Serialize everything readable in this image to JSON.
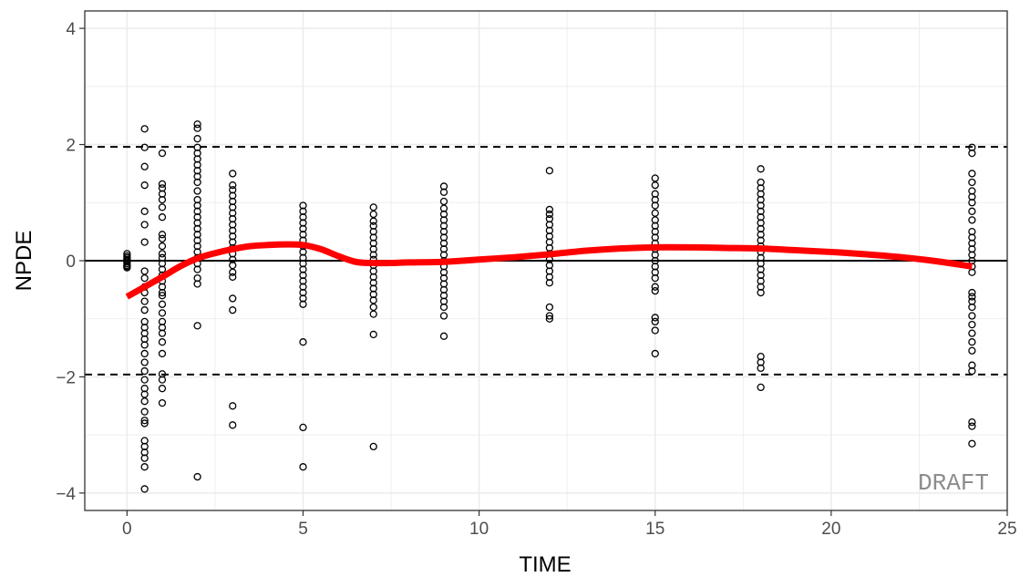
{
  "chart_data": {
    "type": "scatter",
    "xlabel": "TIME",
    "ylabel": "NPDE",
    "xlim": [
      -1.2,
      25
    ],
    "ylim": [
      -4.3,
      4.3
    ],
    "x_ticks": [
      0,
      5,
      10,
      15,
      20,
      25
    ],
    "y_ticks": [
      -4,
      -2,
      0,
      2,
      4
    ],
    "x_tick_labels": [
      "0",
      "5",
      "10",
      "15",
      "20",
      "25"
    ],
    "y_tick_labels": [
      "−4",
      "−2",
      "0",
      "2",
      "4"
    ],
    "grid": true,
    "reference_lines": {
      "solid": [
        0
      ],
      "dashed": [
        -1.96,
        1.96
      ]
    },
    "watermark": "DRAFT",
    "colors": {
      "points": "#000000",
      "smooth": "#ff0000",
      "grid": "#ebebeb",
      "panel_border": "#333333",
      "watermark": "#8c8c8c"
    },
    "series": [
      {
        "type": "scatter",
        "groups": [
          {
            "x": 0,
            "y": [
              0.12,
              0.08,
              0.05,
              0.02,
              0.0,
              -0.02,
              -0.05,
              -0.08,
              -0.1,
              -0.12
            ]
          },
          {
            "x": 0.5,
            "y": [
              2.27,
              1.95,
              1.62,
              1.3,
              0.85,
              0.62,
              0.32,
              -0.18,
              -0.3,
              -0.45,
              -0.55,
              -0.7,
              -0.85,
              -1.05,
              -1.15,
              -1.25,
              -1.35,
              -1.45,
              -1.6,
              -1.75,
              -1.9,
              -2.05,
              -2.2,
              -2.3,
              -2.42,
              -2.6,
              -2.75,
              -2.8,
              -3.1,
              -3.2,
              -3.3,
              -3.4,
              -3.55,
              -3.93
            ]
          },
          {
            "x": 1,
            "y": [
              1.85,
              1.32,
              1.25,
              1.15,
              1.05,
              0.92,
              0.75,
              0.45,
              0.38,
              0.25,
              0.12,
              0.05,
              -0.05,
              -0.15,
              -0.25,
              -0.35,
              -0.45,
              -0.55,
              -0.6,
              -0.75,
              -0.9,
              -1.05,
              -1.15,
              -1.25,
              -1.4,
              -1.6,
              -1.95,
              -2.05,
              -2.2,
              -2.45
            ]
          },
          {
            "x": 2,
            "y": [
              2.35,
              2.28,
              2.1,
              1.95,
              1.85,
              1.75,
              1.65,
              1.55,
              1.45,
              1.35,
              1.2,
              1.05,
              0.95,
              0.85,
              0.75,
              0.65,
              0.55,
              0.45,
              0.35,
              0.25,
              0.15,
              0.05,
              -0.05,
              -0.15,
              -0.3,
              -0.4,
              -1.12,
              -3.72
            ]
          },
          {
            "x": 3,
            "y": [
              1.5,
              1.3,
              1.22,
              1.12,
              1.02,
              0.92,
              0.82,
              0.72,
              0.62,
              0.52,
              0.42,
              0.32,
              0.22,
              0.12,
              0.02,
              -0.08,
              -0.2,
              -0.28,
              -0.65,
              -0.85,
              -2.5,
              -2.83
            ]
          },
          {
            "x": 5,
            "y": [
              0.95,
              0.85,
              0.75,
              0.65,
              0.55,
              0.45,
              0.35,
              0.25,
              0.15,
              0.05,
              -0.05,
              -0.15,
              -0.25,
              -0.35,
              -0.45,
              -0.55,
              -0.65,
              -0.75,
              -1.4,
              -2.87,
              -3.55
            ]
          },
          {
            "x": 7,
            "y": [
              0.92,
              0.8,
              0.68,
              0.6,
              0.5,
              0.4,
              0.3,
              0.2,
              0.1,
              0.02,
              -0.08,
              -0.18,
              -0.28,
              -0.38,
              -0.48,
              -0.58,
              -0.68,
              -0.8,
              -0.92,
              -1.27,
              -3.2
            ]
          },
          {
            "x": 9,
            "y": [
              1.28,
              1.18,
              1.02,
              0.9,
              0.8,
              0.7,
              0.6,
              0.5,
              0.4,
              0.3,
              0.2,
              0.1,
              0.0,
              -0.1,
              -0.2,
              -0.3,
              -0.4,
              -0.5,
              -0.6,
              -0.7,
              -0.8,
              -0.95,
              -1.3
            ]
          },
          {
            "x": 12,
            "y": [
              1.55,
              0.88,
              0.8,
              0.72,
              0.62,
              0.52,
              0.42,
              0.32,
              0.22,
              0.12,
              0.02,
              -0.08,
              -0.18,
              -0.28,
              -0.38,
              -0.8,
              -0.95,
              -1.0
            ]
          },
          {
            "x": 15,
            "y": [
              1.42,
              1.3,
              1.15,
              1.05,
              0.95,
              0.82,
              0.7,
              0.6,
              0.5,
              0.4,
              0.3,
              0.2,
              0.1,
              0.0,
              -0.1,
              -0.2,
              -0.3,
              -0.45,
              -0.52,
              -0.98,
              -1.05,
              -1.2,
              -1.6
            ]
          },
          {
            "x": 18,
            "y": [
              1.58,
              1.35,
              1.25,
              1.15,
              1.05,
              0.95,
              0.85,
              0.75,
              0.65,
              0.55,
              0.45,
              0.35,
              0.25,
              0.15,
              0.05,
              -0.05,
              -0.15,
              -0.25,
              -0.35,
              -0.45,
              -0.55,
              -1.65,
              -1.75,
              -1.85,
              -2.18
            ]
          },
          {
            "x": 24,
            "y": [
              1.95,
              1.85,
              1.5,
              1.35,
              1.2,
              1.1,
              1.0,
              0.85,
              0.7,
              0.5,
              0.4,
              0.3,
              0.2,
              0.1,
              0.0,
              -0.1,
              -0.2,
              -0.55,
              -0.62,
              -0.7,
              -0.8,
              -0.95,
              -1.1,
              -1.25,
              -1.4,
              -1.55,
              -1.8,
              -1.9,
              -2.78,
              -2.85,
              -3.15
            ]
          }
        ]
      },
      {
        "type": "line",
        "x": [
          0,
          0.5,
          1,
          1.5,
          2,
          2.5,
          3,
          3.5,
          4,
          4.5,
          5,
          5.5,
          6,
          6.5,
          7,
          7.5,
          8,
          9,
          10,
          11,
          12,
          13,
          14,
          15,
          16,
          17,
          18,
          19,
          20,
          21,
          22,
          23,
          24
        ],
        "y": [
          -0.62,
          -0.45,
          -0.28,
          -0.1,
          0.04,
          0.13,
          0.2,
          0.25,
          0.27,
          0.28,
          0.27,
          0.2,
          0.08,
          -0.02,
          -0.04,
          -0.04,
          -0.03,
          -0.02,
          0.02,
          0.06,
          0.11,
          0.17,
          0.21,
          0.23,
          0.23,
          0.22,
          0.21,
          0.18,
          0.15,
          0.11,
          0.06,
          -0.01,
          -0.1
        ]
      }
    ]
  }
}
